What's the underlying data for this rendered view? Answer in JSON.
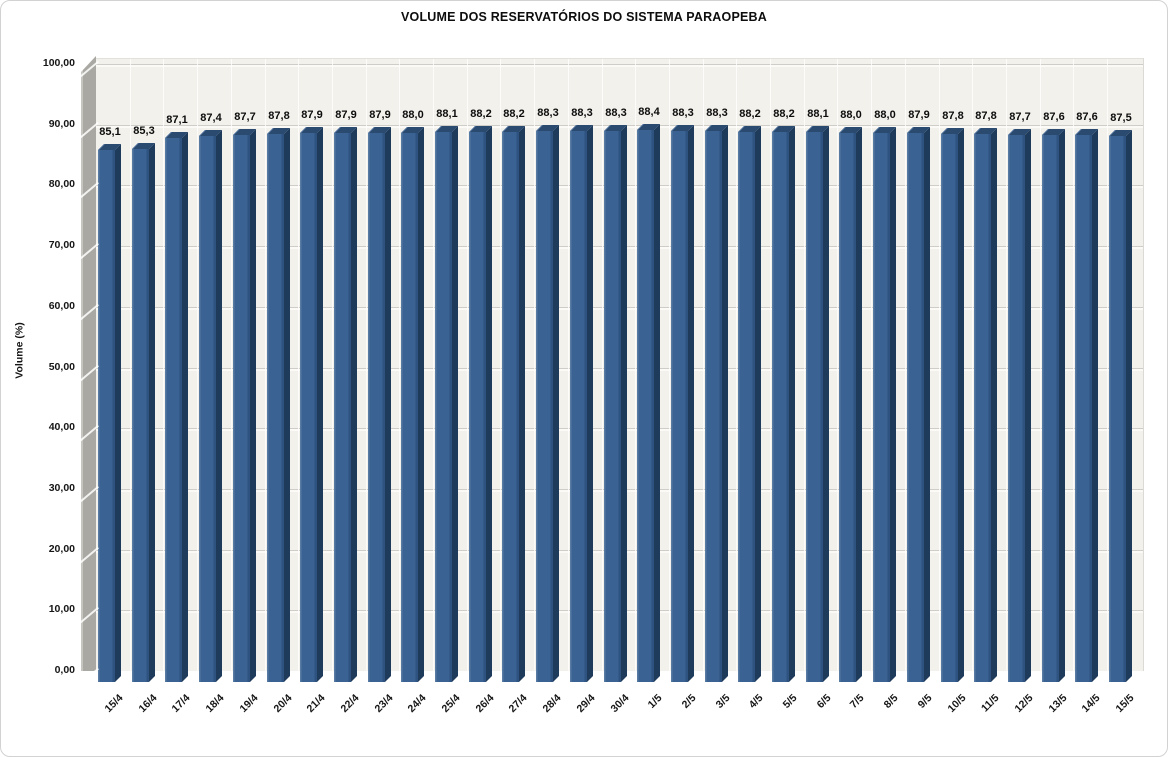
{
  "title": "VOLUME DOS RESERVATÓRIOS DO SISTEMA PARAOPEBA",
  "chart_data": {
    "type": "bar",
    "title": "VOLUME DOS RESERVATÓRIOS DO SISTEMA PARAOPEBA",
    "xlabel": "",
    "ylabel": "Volume (%)",
    "ylim": [
      0,
      100
    ],
    "y_tick_step": 10,
    "y_tick_labels": [
      "0,00",
      "10,00",
      "20,00",
      "30,00",
      "40,00",
      "50,00",
      "60,00",
      "70,00",
      "80,00",
      "90,00",
      "100,00"
    ],
    "grid": true,
    "legend_position": "none",
    "style_3d": true,
    "categories": [
      "15/4",
      "16/4",
      "17/4",
      "18/4",
      "19/4",
      "20/4",
      "21/4",
      "22/4",
      "23/4",
      "24/4",
      "25/4",
      "26/4",
      "27/4",
      "28/4",
      "29/4",
      "30/4",
      "1/5",
      "2/5",
      "3/5",
      "4/5",
      "5/5",
      "6/5",
      "7/5",
      "8/5",
      "9/5",
      "10/5",
      "11/5",
      "12/5",
      "13/5",
      "14/5",
      "15/5"
    ],
    "values": [
      85.1,
      85.3,
      87.1,
      87.4,
      87.7,
      87.8,
      87.9,
      87.9,
      87.9,
      88.0,
      88.1,
      88.2,
      88.2,
      88.3,
      88.3,
      88.3,
      88.4,
      88.3,
      88.3,
      88.2,
      88.2,
      88.1,
      88.0,
      88.0,
      87.9,
      87.8,
      87.8,
      87.7,
      87.6,
      87.6,
      87.5
    ],
    "value_labels": [
      "85,1",
      "85,3",
      "87,1",
      "87,4",
      "87,7",
      "87,8",
      "87,9",
      "87,9",
      "87,9",
      "88,0",
      "88,1",
      "88,2",
      "88,2",
      "88,3",
      "88,3",
      "88,3",
      "88,4",
      "88,3",
      "88,3",
      "88,2",
      "88,2",
      "88,1",
      "88,0",
      "88,0",
      "87,9",
      "87,8",
      "87,8",
      "87,7",
      "87,6",
      "87,6",
      "87,5"
    ],
    "colors": {
      "bar_face": "#3a6292",
      "bar_side": "#1e3b5c",
      "bar_top": "#2a4a70",
      "plot_background": "#f2f1ec",
      "side_wall": "#a9a8a2",
      "floor": "#d8d5c4",
      "gridline": "#ffffff",
      "text": "#0d0d0d"
    }
  }
}
